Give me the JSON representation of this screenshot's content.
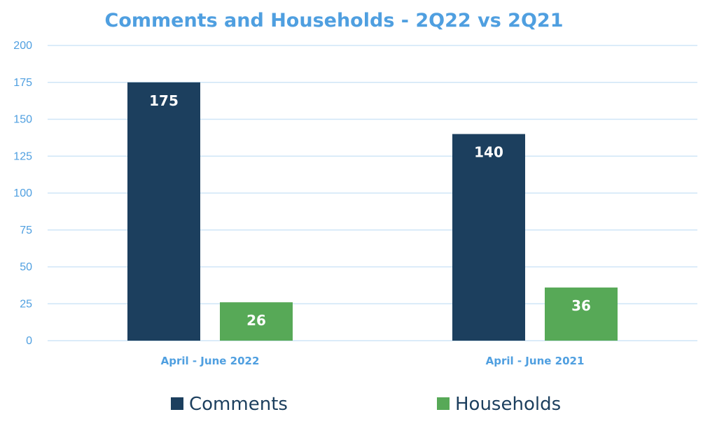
{
  "chart_data": {
    "type": "bar",
    "title": "Comments and Households - 2Q22 vs 2Q21",
    "xlabel": "",
    "ylabel": "",
    "categories": [
      "April - June 2022",
      "April - June 2021"
    ],
    "series": [
      {
        "name": "Comments",
        "values": [
          175,
          140
        ],
        "color": "#1c3f5e"
      },
      {
        "name": "Households",
        "values": [
          26,
          36
        ],
        "color": "#57a957"
      }
    ],
    "ylim": [
      0,
      200
    ],
    "yticks": [
      0,
      25,
      50,
      75,
      100,
      125,
      150,
      175,
      200
    ],
    "grid": true,
    "legend_position": "bottom",
    "data_labels": true
  },
  "colors": {
    "title": "#4f9fe0",
    "axis_text": "#4f9fe0",
    "gridline": "#cfe6f7",
    "data_label": "#ffffff",
    "legend_text": "#1c3f5e"
  }
}
